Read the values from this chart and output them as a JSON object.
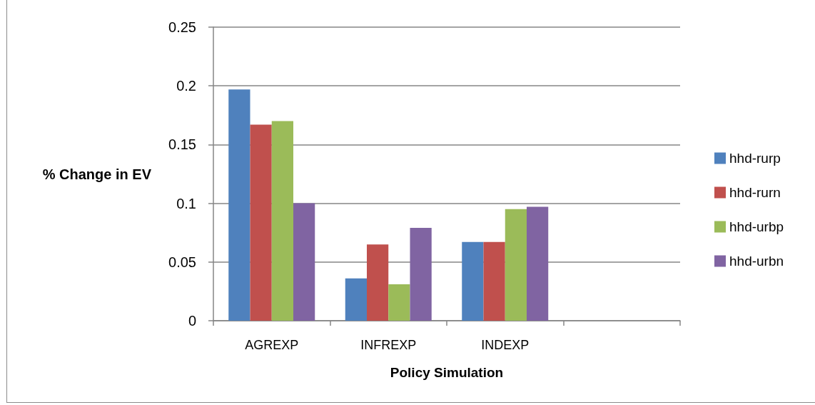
{
  "chart_data": {
    "type": "bar",
    "xlabel": "Policy Simulation",
    "ylabel": "% Change in EV",
    "categories": [
      "AGREXP",
      "INFREXP",
      "INDEXP",
      null
    ],
    "series": [
      {
        "name": "hhd-rurp",
        "color": "#4f81bd",
        "values": [
          0.197,
          0.036,
          0.067,
          null
        ]
      },
      {
        "name": "hhd-rurn",
        "color": "#c0504d",
        "values": [
          0.167,
          0.065,
          0.067,
          null
        ]
      },
      {
        "name": "hhd-urbp",
        "color": "#9bbb59",
        "values": [
          0.17,
          0.031,
          0.095,
          null
        ]
      },
      {
        "name": "hhd-urbn",
        "color": "#8064a2",
        "values": [
          0.1,
          0.079,
          0.097,
          null
        ]
      }
    ],
    "ylim": [
      0,
      0.25
    ],
    "yticks": [
      0,
      0.05,
      0.1,
      0.15,
      0.2,
      0.25
    ],
    "grid": "y",
    "legend": "right"
  }
}
